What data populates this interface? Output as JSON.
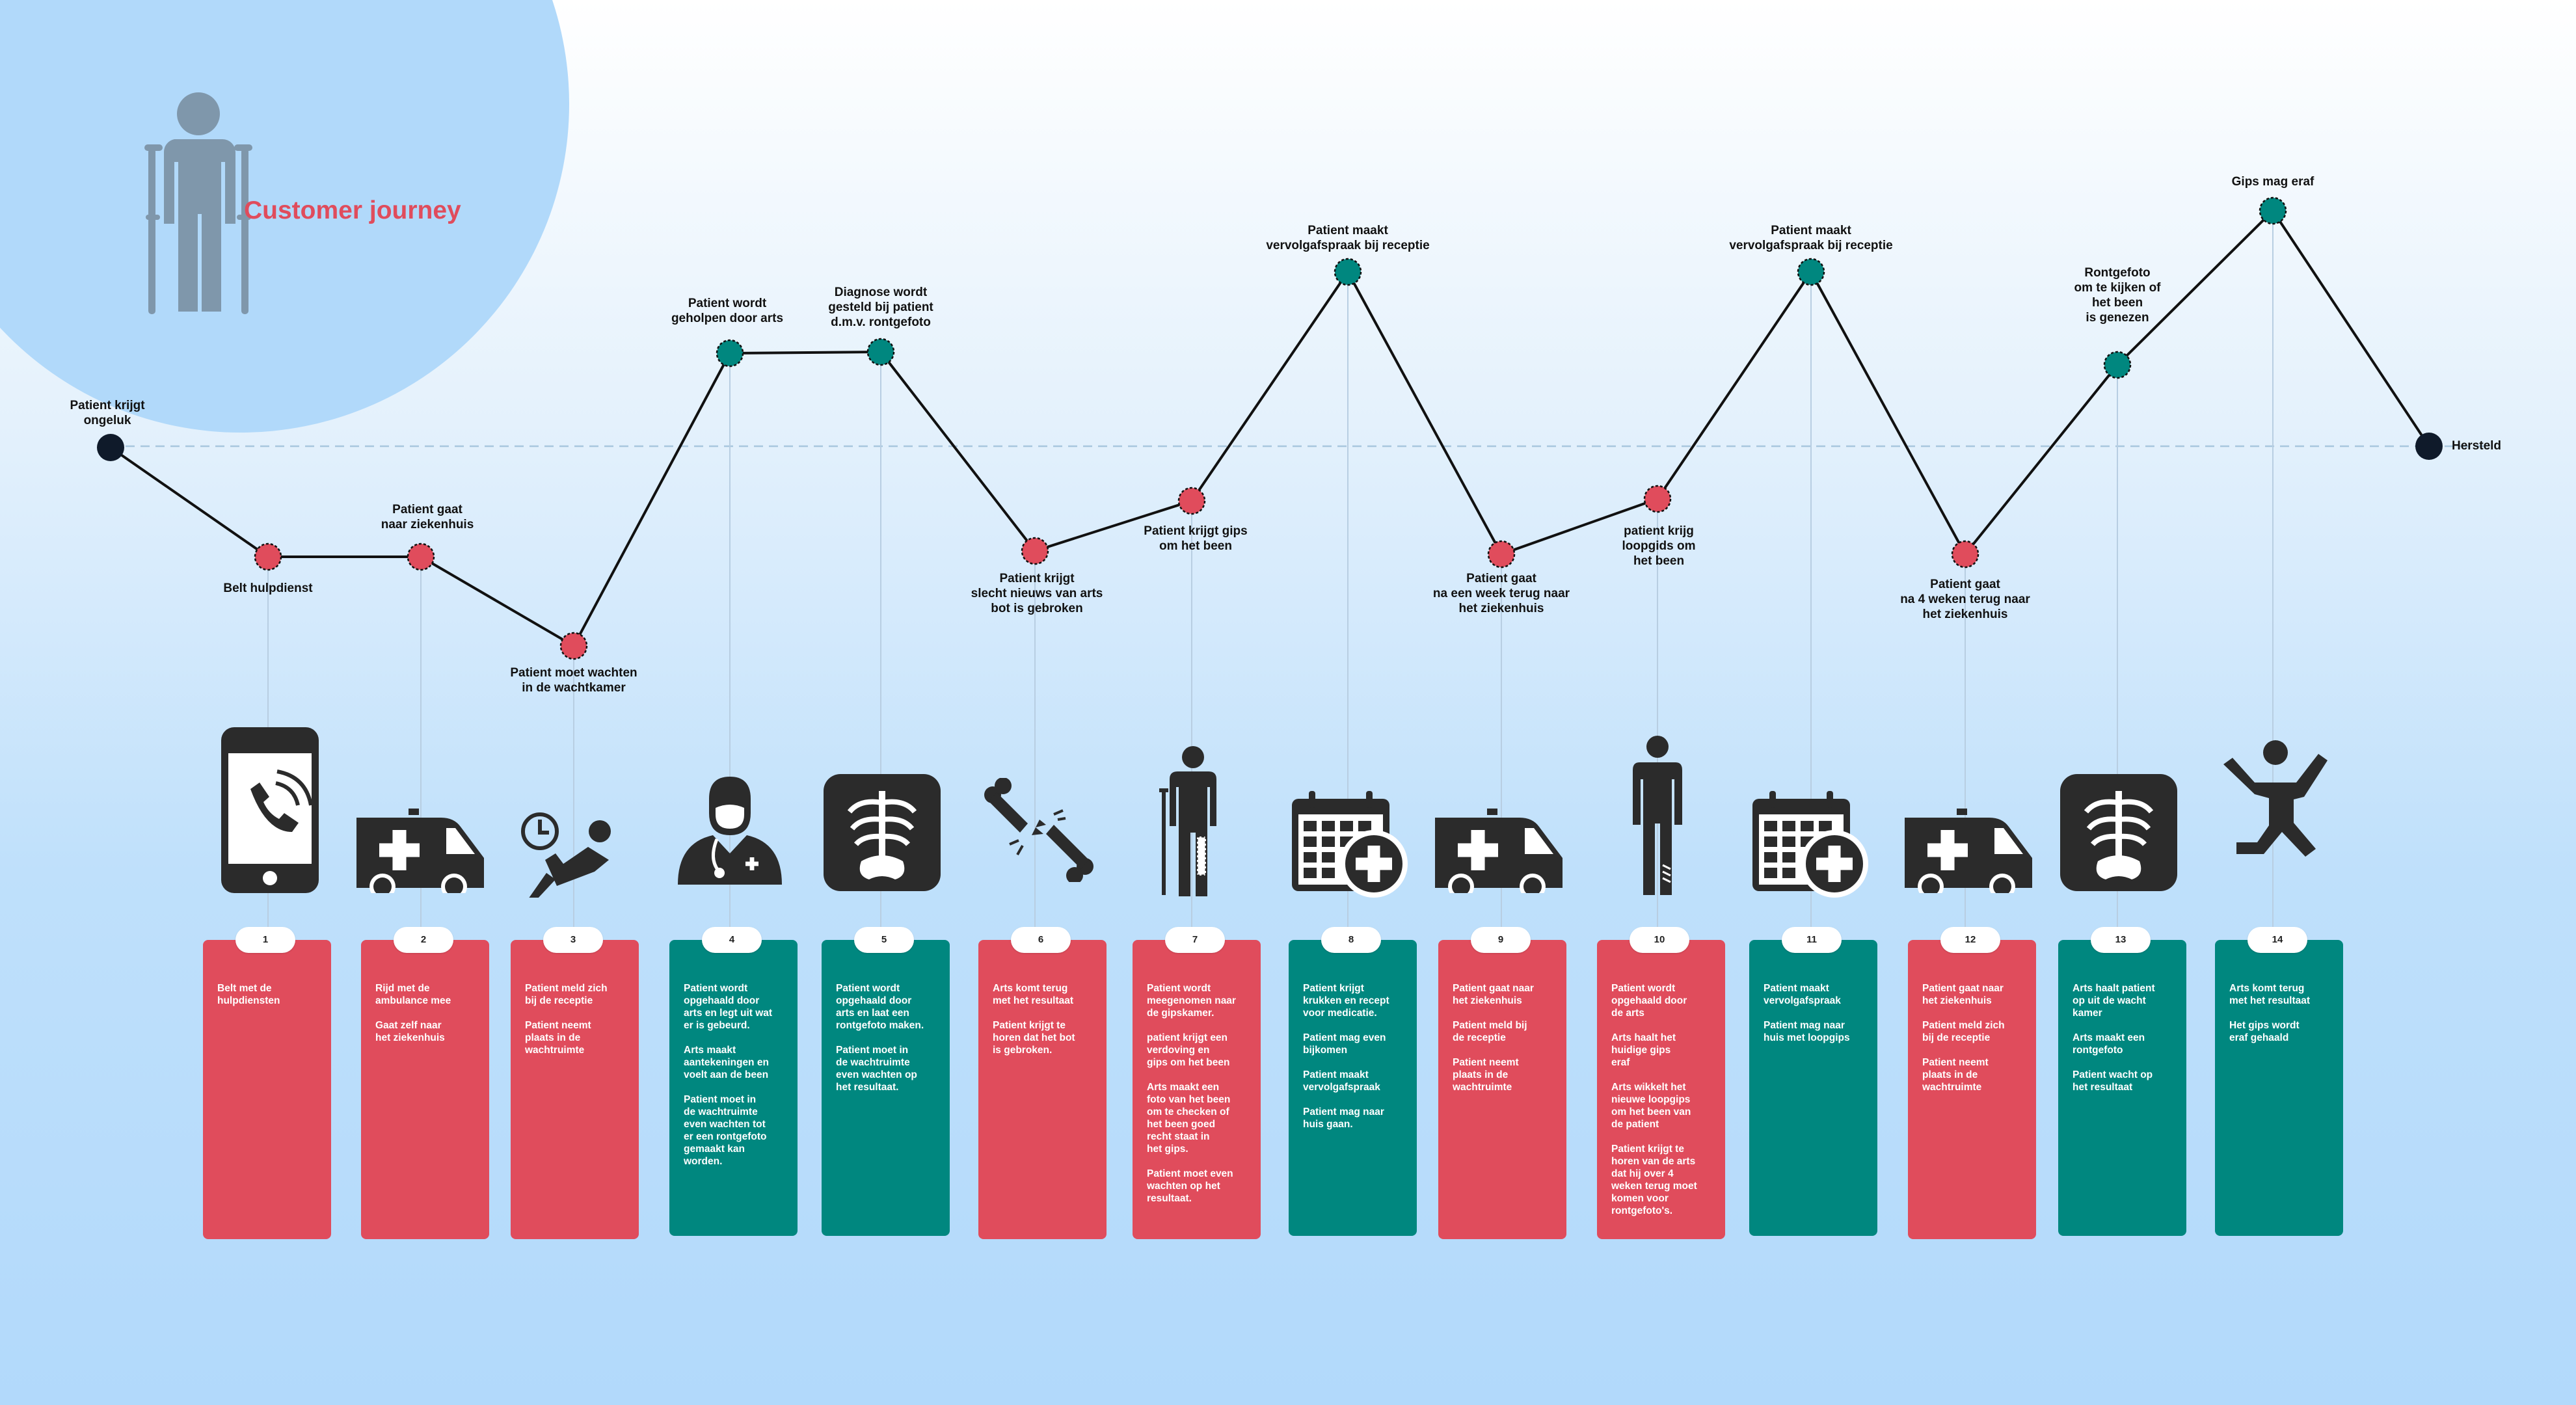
{
  "title": "Customer journey",
  "colors": {
    "red": "#e04c5c",
    "teal": "#00877f",
    "dark": "#0f1a2a",
    "icon": "#2b2b2b"
  },
  "points": [
    {
      "label": "Patient krijgt\nongeluk",
      "kind": "dark"
    },
    {
      "label": "Belt hulpdienst",
      "kind": "red"
    },
    {
      "label": "Patient gaat\nnaar ziekenhuis",
      "kind": "red"
    },
    {
      "label": "Patient moet wachten\nin de wachtkamer",
      "kind": "red"
    },
    {
      "label": "Patient wordt\ngeholpen door arts",
      "kind": "teal"
    },
    {
      "label": "Diagnose wordt\ngesteld bij patient\nd.m.v. rontgefoto",
      "kind": "teal"
    },
    {
      "label": "Patient krijgt\nslecht nieuws van arts\nbot is gebroken",
      "kind": "red"
    },
    {
      "label": "Patient krijgt gips\nom het been",
      "kind": "red"
    },
    {
      "label": "Patient maakt\nvervolgafspraak bij receptie",
      "kind": "teal"
    },
    {
      "label": "Patient gaat\nna een week terug naar\nhet ziekenhuis",
      "kind": "red"
    },
    {
      "label": "patient krijg\nloopgids om\nhet been",
      "kind": "red"
    },
    {
      "label": "Patient maakt\nvervolgafspraak bij receptie",
      "kind": "teal"
    },
    {
      "label": "Patient gaat\nna 4 weken terug naar\nhet ziekenhuis",
      "kind": "red"
    },
    {
      "label": "Rontgefoto\nom te kijken of\nhet been\nis genezen",
      "kind": "teal"
    },
    {
      "label": "Gips mag eraf",
      "kind": "teal"
    },
    {
      "label": "Hersteld",
      "kind": "dark"
    }
  ],
  "steps": [
    {
      "number": "1",
      "color": "red",
      "icon": "phone-call-icon",
      "text": "Belt met de\nhulpdiensten"
    },
    {
      "number": "2",
      "color": "red",
      "icon": "ambulance-icon",
      "text": "Rijd met de\nambulance mee\n\nGaat zelf naar\nhet ziekenhuis"
    },
    {
      "number": "3",
      "color": "red",
      "icon": "waiting-room-icon",
      "text": "Patient meld zich\nbij de receptie\n\nPatient neemt\nplaats in de\nwachtruimte"
    },
    {
      "number": "4",
      "color": "teal",
      "icon": "doctor-icon",
      "text": "Patient wordt\nopgehaald door\narts en legt uit wat\ner is gebeurd.\n\nArts maakt\naantekeningen en\nvoelt aan de been\n\nPatient moet in\nde wachtruimte\neven wachten tot\ner een rontgefoto\ngemaakt kan\nworden."
    },
    {
      "number": "5",
      "color": "teal",
      "icon": "xray-icon",
      "text": "Patient wordt\nopgehaald door\narts en laat een\nrontgefoto maken.\n\nPatient moet in\nde wachtruimte\neven wachten op\nhet resultaat."
    },
    {
      "number": "6",
      "color": "red",
      "icon": "broken-bone-icon",
      "text": "Arts komt terug\nmet het resultaat\n\nPatient krijgt te\nhoren dat het bot\nis gebroken."
    },
    {
      "number": "7",
      "color": "red",
      "icon": "crutch-person-icon",
      "text": "Patient wordt\nmeegenomen naar\nde gipskamer.\n\npatient krijgt een\nverdoving en\ngips om het been\n\nArts maakt een\nfoto van het been\nom te checken of\nhet been goed\nrecht staat in\nhet gips.\n\nPatient moet even\nwachten op het\nresultaat."
    },
    {
      "number": "8",
      "color": "teal",
      "icon": "calendar-plus-icon",
      "text": "Patient krijgt\nkrukken en recept\nvoor medicatie.\n\nPatient mag even\nbijkomen\n\nPatient maakt\nvervolgafspraak\n\nPatient mag naar\nhuis gaan."
    },
    {
      "number": "9",
      "color": "red",
      "icon": "ambulance-icon",
      "text": "Patient gaat naar\nhet ziekenhuis\n\nPatient meld bij\nde receptie\n\nPatient neemt\nplaats in de\nwachtruimte"
    },
    {
      "number": "10",
      "color": "red",
      "icon": "walking-cast-person-icon",
      "text": "Patient wordt\nopgehaald door\nde arts\n\nArts haalt het\nhuidige gips\neraf\n\nArts wikkelt het\nnieuwe loopgips\nom het been van\nde patient\n\nPatient krijgt te\nhoren van de arts\ndat hij over 4\nweken terug moet\nkomen voor\nrontgefoto's."
    },
    {
      "number": "11",
      "color": "teal",
      "icon": "calendar-plus-icon",
      "text": "Patient maakt\nvervolgafspraak\n\nPatient mag naar\nhuis met loopgips"
    },
    {
      "number": "12",
      "color": "red",
      "icon": "ambulance-icon",
      "text": "Patient gaat naar\nhet ziekenhuis\n\nPatient meld zich\nbij de receptie\n\nPatient neemt\nplaats in de\nwachtruimte"
    },
    {
      "number": "13",
      "color": "teal",
      "icon": "xray-icon",
      "text": "Arts haalt patient\nop uit de wacht\nkamer\n\nArts maakt een\nrontgefoto\n\nPatient wacht op\nhet resultaat"
    },
    {
      "number": "14",
      "color": "teal",
      "icon": "jumping-person-icon",
      "text": "Arts komt terug\nmet het resultaat\n\nHet gips wordt\neraf gehaald"
    }
  ]
}
